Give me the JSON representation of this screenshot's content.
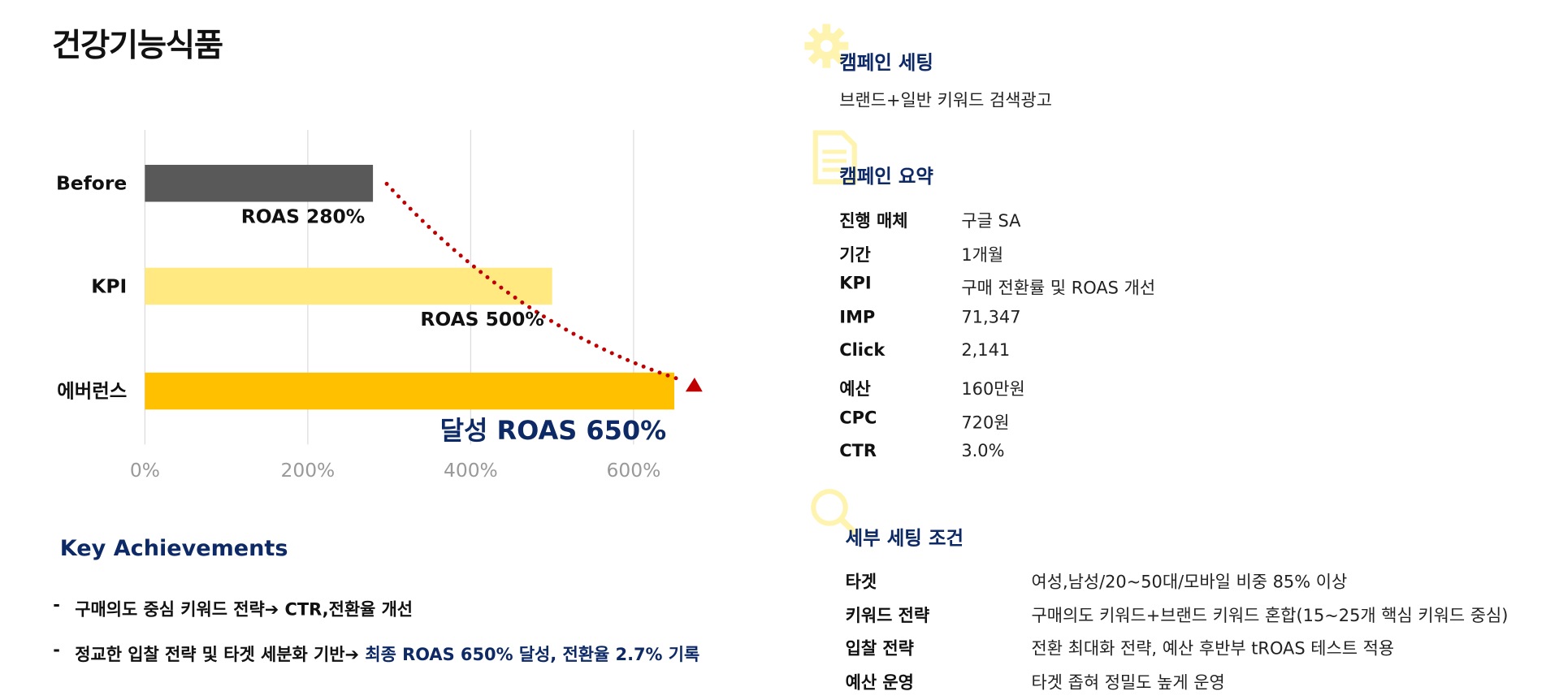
{
  "title": "건강기능식품",
  "chart_data": {
    "type": "bar",
    "orientation": "horizontal",
    "categories": [
      "Before",
      "KPI",
      "에버런스"
    ],
    "values": [
      280,
      500,
      650
    ],
    "value_labels": [
      "ROAS 280%",
      "ROAS 500%",
      "달성 ROAS 650%"
    ],
    "colors": [
      "#595959",
      "#ffe980",
      "#ffc000"
    ],
    "xlim": [
      0,
      700
    ],
    "xticks": [
      {
        "value": 0,
        "label": "0%"
      },
      {
        "value": 200,
        "label": "200%"
      },
      {
        "value": 400,
        "label": "400%"
      },
      {
        "value": 600,
        "label": "600%"
      }
    ],
    "grid": true
  },
  "key_achievements": {
    "title": "Key Achievements",
    "items": [
      [
        {
          "text": "구매의도 중심 키워드 전략",
          "style": "normal"
        },
        {
          "text": "➔ CTR,전환율 개선",
          "style": "bold"
        }
      ],
      [
        {
          "text": "정교한 입찰 전략 및 타겟 세분화 기반➔ ",
          "style": "normal"
        },
        {
          "text": "최종 ROAS 650% 달성, 전환율 2.7% 기록",
          "style": "highlight"
        }
      ]
    ]
  },
  "campaign_setting": {
    "title": "캠페인 세팅",
    "text": "브랜드+일반 키워드 검색광고"
  },
  "campaign_summary": {
    "title": "캠페인 요약",
    "rows": [
      [
        "진행 매체",
        "구글 SA"
      ],
      [
        "기간",
        "1개월"
      ],
      [
        "KPI",
        "구매 전환률 및 ROAS 개선"
      ],
      [
        "IMP",
        "71,347"
      ],
      [
        "Click",
        "2,141"
      ],
      [
        "예산",
        "160만원"
      ],
      [
        "CPC",
        "720원"
      ],
      [
        "CTR",
        "3.0%"
      ]
    ]
  },
  "detail_settings": {
    "title": "세부 세팅 조건",
    "rows": [
      [
        "타겟",
        "여성,남성/20~50대/모바일 비중 85% 이상"
      ],
      [
        "키워드 전략",
        "구매의도 키워드+브랜드 키워드 혼합(15~25개 핵심 키워드 중심)"
      ],
      [
        "입찰 전략",
        "전환 최대화 전략, 예산 후반부 tROAS 테스트 적용"
      ],
      [
        "예산 운영",
        "타겟 좁혀 정밀도 높게 운영"
      ]
    ]
  }
}
